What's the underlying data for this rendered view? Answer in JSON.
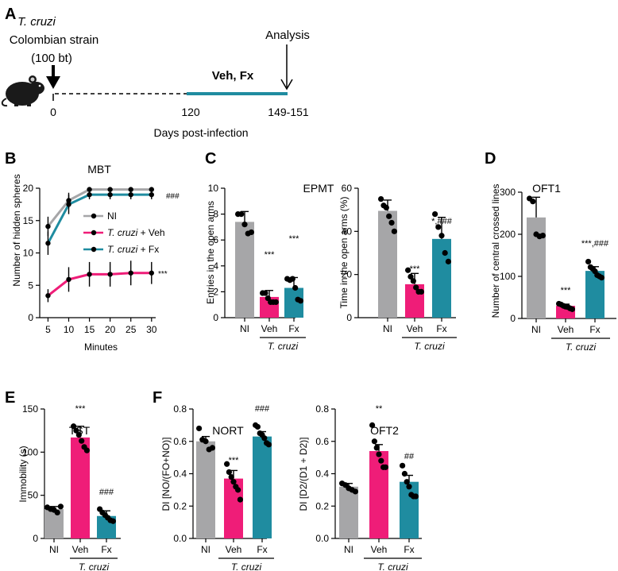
{
  "figure": {
    "panel_letters": [
      "A",
      "B",
      "C",
      "D",
      "E",
      "F"
    ],
    "panelA": {
      "pathogen": "T. cruzi",
      "strain": "Colombian strain",
      "inoculum": "(100 bt)",
      "analysis": "Analysis",
      "treatment": "Veh, Fx",
      "day_start": "0",
      "day_treat": "120",
      "day_end": "149-151",
      "xlabel": "Days post-infection"
    },
    "group_label": "T. cruzi",
    "colors": {
      "NI": "#a6a6a8",
      "Veh": "#ef1d78",
      "Fx": "#1f8ca0"
    }
  },
  "chart_data": [
    {
      "id": "MBT",
      "type": "line",
      "title": "MBT",
      "xlabel": "Minutes",
      "ylabel": "Number of hidden spheres",
      "x": [
        5,
        10,
        15,
        20,
        25,
        30
      ],
      "xlim": [
        3,
        31
      ],
      "ylim": [
        0,
        20
      ],
      "yticks": [
        0,
        5,
        10,
        15,
        20
      ],
      "series": [
        {
          "name": "NI",
          "values": [
            14.1,
            18.1,
            19.8,
            19.8,
            19.8,
            19.8
          ],
          "err": [
            1.5,
            1.2,
            0.3,
            0.3,
            0.3,
            0.3
          ]
        },
        {
          "name": "T. cruzi + Veh",
          "values": [
            3.4,
            5.9,
            6.7,
            6.7,
            6.9,
            6.9
          ],
          "err": [
            1.0,
            1.9,
            1.9,
            1.9,
            1.9,
            1.7
          ]
        },
        {
          "name": "T. cruzi + Fx",
          "values": [
            11.5,
            17.5,
            19.0,
            19.0,
            19.0,
            19.0
          ],
          "err": [
            1.8,
            1.5,
            0.7,
            0.7,
            0.7,
            0.7
          ]
        }
      ],
      "annotations": [
        "###",
        "***"
      ]
    },
    {
      "id": "EPMT-entries",
      "type": "bar",
      "title": "EPMT",
      "ylabel": "Entries in the open arms",
      "categories": [
        "NI",
        "Veh",
        "Fx"
      ],
      "values": [
        7.4,
        1.6,
        2.3
      ],
      "err": [
        0.8,
        0.5,
        0.8
      ],
      "points": [
        [
          8.0,
          8.0,
          7.2,
          6.5,
          6.6
        ],
        [
          1.9,
          1.9,
          1.5,
          1.2,
          1.2,
          1.2
        ],
        [
          3.0,
          2.9,
          3.0,
          2.3,
          1.4,
          1.3
        ]
      ],
      "ylim": [
        0,
        10
      ],
      "yticks": [
        0,
        2,
        4,
        6,
        8,
        10
      ],
      "sig": [
        "",
        "***",
        "***"
      ]
    },
    {
      "id": "EPMT-time",
      "type": "bar",
      "title": "",
      "ylabel": "Time in the open arms (%)",
      "categories": [
        "NI",
        "Veh",
        "Fx"
      ],
      "values": [
        49.5,
        15.5,
        36.5
      ],
      "err": [
        5,
        5,
        10
      ],
      "points": [
        [
          55,
          52,
          51,
          47,
          44,
          40
        ],
        [
          22,
          19,
          17,
          14,
          12,
          12
        ],
        [
          48,
          42,
          38,
          30,
          26
        ]
      ],
      "ylim": [
        0,
        60
      ],
      "yticks": [
        0,
        20,
        40,
        60
      ],
      "sig": [
        "",
        "***",
        "*,###"
      ]
    },
    {
      "id": "OFT1",
      "type": "bar",
      "title": "OFT1",
      "ylabel": "Number of central crossed lines",
      "categories": [
        "NI",
        "Veh",
        "Fx"
      ],
      "values": [
        240,
        30,
        113
      ],
      "err": [
        48,
        4,
        10
      ],
      "points": [
        [
          285,
          278,
          200,
          195,
          197
        ],
        [
          35,
          33,
          30,
          28,
          27,
          24,
          22
        ],
        [
          135,
          122,
          118,
          112,
          103,
          100,
          97
        ]
      ],
      "ylim": [
        0,
        300
      ],
      "yticks": [
        0,
        100,
        200,
        300
      ],
      "sig": [
        "",
        "***",
        "***,###"
      ]
    },
    {
      "id": "TST",
      "type": "bar",
      "title": "TST",
      "ylabel": "Immobility (s)",
      "categories": [
        "NI",
        "Veh",
        "Fx"
      ],
      "values": [
        34,
        117,
        26
      ],
      "err": [
        3,
        13,
        6
      ],
      "points": [
        [
          36,
          34,
          33,
          30,
          37
        ],
        [
          130,
          125,
          120,
          113,
          106,
          102
        ],
        [
          34,
          30,
          27,
          24,
          21,
          20
        ]
      ],
      "ylim": [
        0,
        150
      ],
      "yticks": [
        0,
        50,
        100,
        150
      ],
      "sig": [
        "",
        "***",
        "###"
      ]
    },
    {
      "id": "NORT",
      "type": "bar",
      "title": "NORT",
      "ylabel": "DI [NO/(FO+NO)]",
      "categories": [
        "NI",
        "Veh",
        "Fx"
      ],
      "values": [
        0.6,
        0.37,
        0.63
      ],
      "err": [
        0.03,
        0.05,
        0.03
      ],
      "points": [
        [
          0.68,
          0.61,
          0.6,
          0.55,
          0.56
        ],
        [
          0.46,
          0.41,
          0.38,
          0.35,
          0.32,
          0.3,
          0.24
        ],
        [
          0.7,
          0.69,
          0.65,
          0.64,
          0.62,
          0.59,
          0.58
        ]
      ],
      "ylim": [
        0,
        0.8
      ],
      "yticks": [
        "0.0",
        "0.2",
        "0.4",
        "0.6",
        "0.8"
      ],
      "sig": [
        "",
        "***",
        "###"
      ]
    },
    {
      "id": "OFT2",
      "type": "bar",
      "title": "OFT2",
      "ylabel": "DI [D2/(D1 + D2)]",
      "categories": [
        "NI",
        "Veh",
        "Fx"
      ],
      "values": [
        0.32,
        0.54,
        0.35
      ],
      "err": [
        0.02,
        0.04,
        0.04
      ],
      "points": [
        [
          0.34,
          0.33,
          0.31,
          0.3,
          0.29
        ],
        [
          0.7,
          0.6,
          0.56,
          0.52,
          0.48,
          0.44,
          0.44
        ],
        [
          0.45,
          0.4,
          0.35,
          0.32,
          0.27,
          0.26,
          0.26
        ]
      ],
      "ylim": [
        0,
        0.8
      ],
      "yticks": [
        "0.0",
        "0.2",
        "0.4",
        "0.6",
        "0.8"
      ],
      "sig": [
        "",
        "**",
        "##"
      ]
    }
  ]
}
